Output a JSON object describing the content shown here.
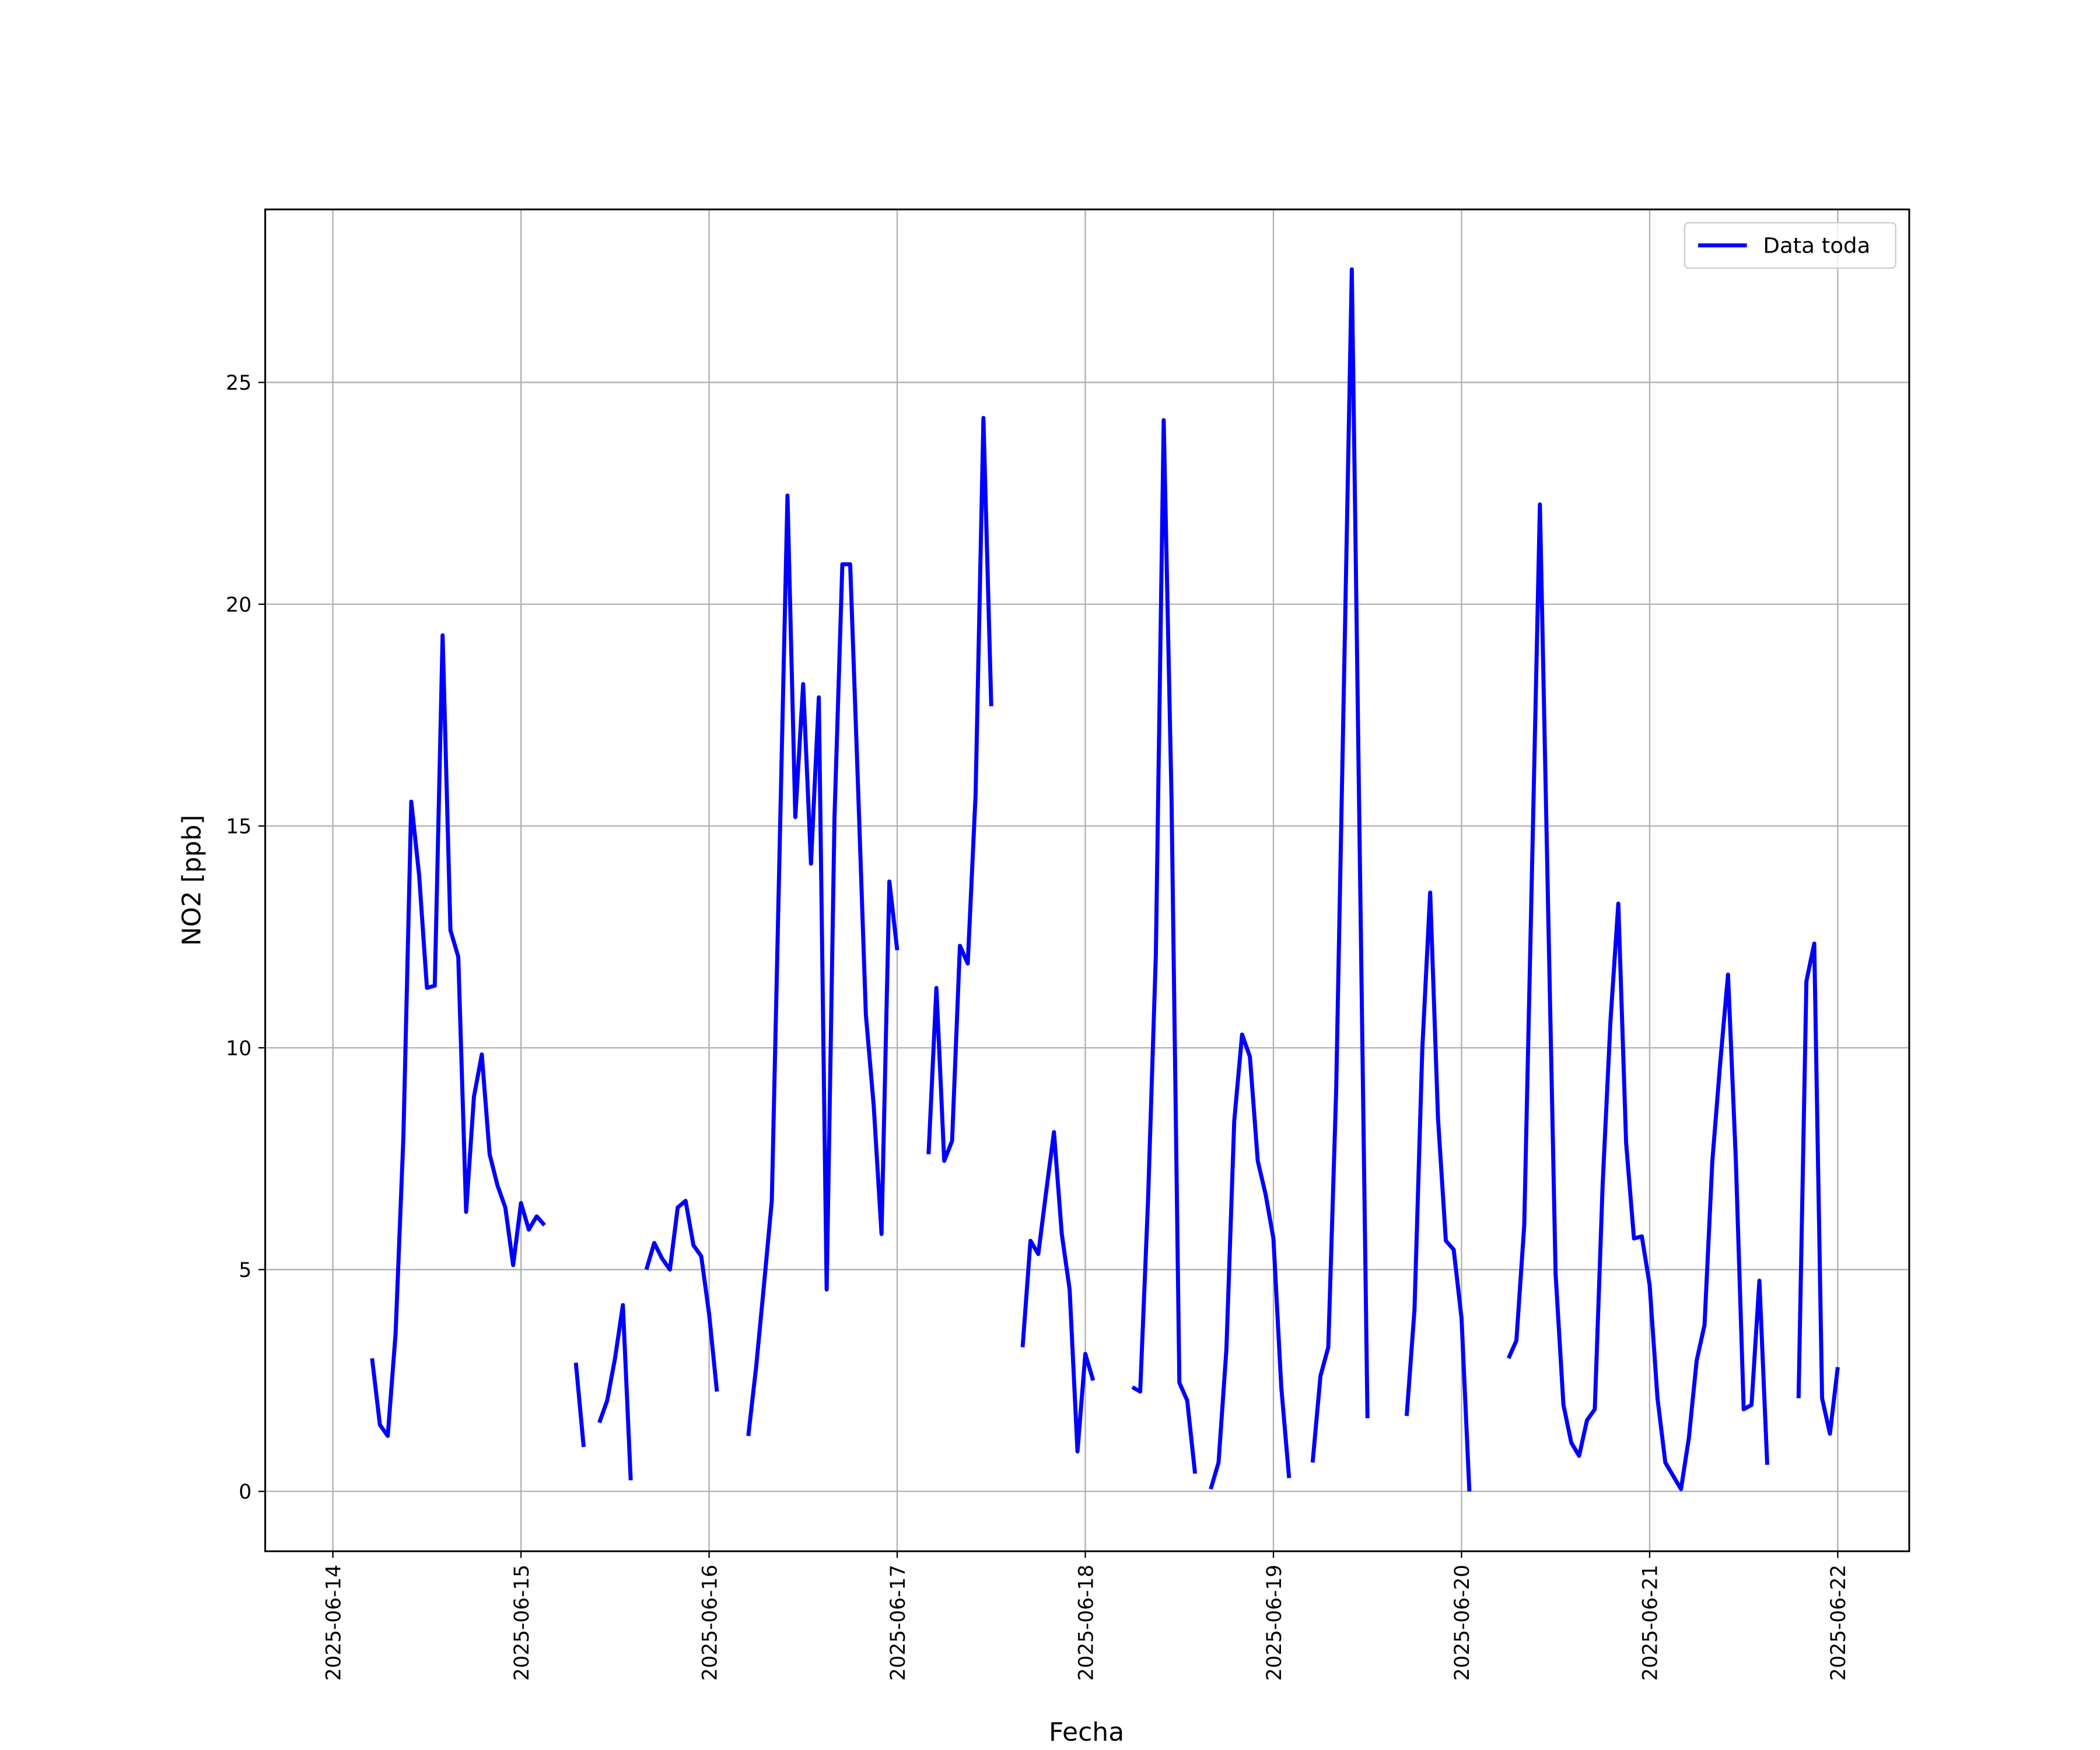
{
  "chart_data": {
    "type": "line",
    "xlabel": "Fecha",
    "ylabel": "NO2 [ppb]",
    "x": [
      "2025-06-14 05:00",
      "2025-06-14 06:00",
      "2025-06-14 07:00",
      "2025-06-14 08:00",
      "2025-06-14 09:00",
      "2025-06-14 10:00",
      "2025-06-14 11:00",
      "2025-06-14 12:00",
      "2025-06-14 13:00",
      "2025-06-14 14:00",
      "2025-06-14 15:00",
      "2025-06-14 16:00",
      "2025-06-14 17:00",
      "2025-06-14 18:00",
      "2025-06-14 19:00",
      "2025-06-14 20:00",
      "2025-06-14 21:00",
      "2025-06-14 22:00",
      "2025-06-14 23:00",
      "2025-06-15 00:00",
      "2025-06-15 01:00",
      "2025-06-15 02:00",
      "2025-06-15 03:00",
      "2025-06-15 04:00",
      "2025-06-15 07:00",
      "2025-06-15 08:00",
      "2025-06-15 09:00",
      "2025-06-15 10:00",
      "2025-06-15 11:00",
      "2025-06-15 12:00",
      "2025-06-15 13:00",
      "2025-06-15 14:00",
      "2025-06-15 15:00",
      "2025-06-15 16:00",
      "2025-06-15 17:00",
      "2025-06-15 18:00",
      "2025-06-15 19:00",
      "2025-06-15 20:00",
      "2025-06-15 21:00",
      "2025-06-15 22:00",
      "2025-06-15 23:00",
      "2025-06-16 00:00",
      "2025-06-16 01:00",
      "2025-06-16 02:00",
      "2025-06-16 05:00",
      "2025-06-16 06:00",
      "2025-06-16 07:00",
      "2025-06-16 08:00",
      "2025-06-16 09:00",
      "2025-06-16 10:00",
      "2025-06-16 11:00",
      "2025-06-16 12:00",
      "2025-06-16 13:00",
      "2025-06-16 14:00",
      "2025-06-16 15:00",
      "2025-06-16 16:00",
      "2025-06-16 17:00",
      "2025-06-16 18:00",
      "2025-06-16 19:00",
      "2025-06-16 20:00",
      "2025-06-16 21:00",
      "2025-06-16 22:00",
      "2025-06-16 23:00",
      "2025-06-17 00:00",
      "2025-06-17 01:00",
      "2025-06-17 04:00",
      "2025-06-17 05:00",
      "2025-06-17 06:00",
      "2025-06-17 07:00",
      "2025-06-17 08:00",
      "2025-06-17 09:00",
      "2025-06-17 10:00",
      "2025-06-17 11:00",
      "2025-06-17 12:00",
      "2025-06-17 13:00",
      "2025-06-17 16:00",
      "2025-06-17 17:00",
      "2025-06-17 18:00",
      "2025-06-17 19:00",
      "2025-06-17 20:00",
      "2025-06-17 21:00",
      "2025-06-17 22:00",
      "2025-06-17 23:00",
      "2025-06-18 00:00",
      "2025-06-18 01:00",
      "2025-06-18 02:00",
      "2025-06-18 06:00",
      "2025-06-18 07:00",
      "2025-06-18 08:00",
      "2025-06-18 09:00",
      "2025-06-18 10:00",
      "2025-06-18 11:00",
      "2025-06-18 12:00",
      "2025-06-18 13:00",
      "2025-06-18 14:00",
      "2025-06-18 15:00",
      "2025-06-18 16:00",
      "2025-06-18 17:00",
      "2025-06-18 18:00",
      "2025-06-18 19:00",
      "2025-06-18 20:00",
      "2025-06-18 21:00",
      "2025-06-18 22:00",
      "2025-06-18 23:00",
      "2025-06-19 00:00",
      "2025-06-19 01:00",
      "2025-06-19 02:00",
      "2025-06-19 03:00",
      "2025-06-19 05:00",
      "2025-06-19 06:00",
      "2025-06-19 07:00",
      "2025-06-19 08:00",
      "2025-06-19 09:00",
      "2025-06-19 10:00",
      "2025-06-19 11:00",
      "2025-06-19 12:00",
      "2025-06-19 13:00",
      "2025-06-19 17:00",
      "2025-06-19 18:00",
      "2025-06-19 19:00",
      "2025-06-19 20:00",
      "2025-06-19 21:00",
      "2025-06-19 22:00",
      "2025-06-19 23:00",
      "2025-06-20 00:00",
      "2025-06-20 01:00",
      "2025-06-20 02:00",
      "2025-06-20 06:00",
      "2025-06-20 07:00",
      "2025-06-20 08:00",
      "2025-06-20 09:00",
      "2025-06-20 10:00",
      "2025-06-20 11:00",
      "2025-06-20 12:00",
      "2025-06-20 13:00",
      "2025-06-20 14:00",
      "2025-06-20 15:00",
      "2025-06-20 16:00",
      "2025-06-20 17:00",
      "2025-06-20 18:00",
      "2025-06-20 19:00",
      "2025-06-20 20:00",
      "2025-06-20 21:00",
      "2025-06-20 22:00",
      "2025-06-20 23:00",
      "2025-06-21 00:00",
      "2025-06-21 01:00",
      "2025-06-21 02:00",
      "2025-06-21 03:00",
      "2025-06-21 04:00",
      "2025-06-21 05:00",
      "2025-06-21 06:00",
      "2025-06-21 07:00",
      "2025-06-21 08:00",
      "2025-06-21 09:00",
      "2025-06-21 10:00",
      "2025-06-21 11:00",
      "2025-06-21 12:00",
      "2025-06-21 13:00",
      "2025-06-21 14:00",
      "2025-06-21 15:00",
      "2025-06-21 16:00",
      "2025-06-21 19:00",
      "2025-06-21 20:00",
      "2025-06-21 21:00",
      "2025-06-21 22:00",
      "2025-06-21 23:00",
      "2025-06-22 00:00"
    ],
    "series": [
      {
        "name": "Data toda",
        "color": "#0000ff",
        "values": [
          3.0,
          1.5,
          1.25,
          3.55,
          8.0,
          15.55,
          13.9,
          11.35,
          11.4,
          19.3,
          12.65,
          12.05,
          6.3,
          8.9,
          9.85,
          7.6,
          6.9,
          6.4,
          5.1,
          6.5,
          5.9,
          6.2,
          6.0,
          null,
          2.9,
          1.0,
          null,
          1.55,
          2.05,
          3.0,
          4.2,
          0.25,
          null,
          5.0,
          5.6,
          5.25,
          5.0,
          6.4,
          6.55,
          5.55,
          5.3,
          4.0,
          2.25,
          null,
          1.25,
          2.8,
          4.65,
          6.55,
          14.5,
          22.45,
          15.2,
          18.2,
          14.15,
          17.9,
          4.55,
          15.2,
          20.9,
          20.9,
          15.9,
          10.75,
          8.7,
          5.8,
          13.75,
          12.2,
          null,
          7.6,
          11.35,
          7.45,
          7.9,
          12.3,
          11.9,
          15.7,
          24.2,
          17.7,
          null,
          3.25,
          5.65,
          5.35,
          6.75,
          8.1,
          5.8,
          4.55,
          0.9,
          3.1,
          2.5,
          null,
          2.35,
          2.25,
          6.55,
          12.1,
          24.15,
          15.6,
          2.45,
          2.05,
          0.4,
          null,
          0.05,
          0.65,
          3.2,
          8.35,
          10.3,
          9.8,
          7.45,
          6.7,
          5.7,
          2.35,
          0.3,
          null,
          0.65,
          2.6,
          3.25,
          9.0,
          18.25,
          27.55,
          14.6,
          1.65,
          null,
          1.7,
          4.1,
          10.0,
          13.5,
          8.4,
          5.65,
          5.45,
          3.9,
          0.0,
          null,
          3.0,
          3.4,
          6.0,
          14.1,
          22.25,
          13.55,
          4.9,
          1.95,
          1.1,
          0.8,
          1.6,
          1.85,
          6.9,
          10.6,
          13.25,
          7.85,
          5.7,
          5.75,
          4.65,
          2.1,
          0.65,
          0.35,
          0.05,
          1.2,
          2.95,
          3.75,
          7.45,
          9.65,
          11.65,
          7.45,
          1.85,
          1.95,
          4.75,
          0.6,
          null,
          2.1,
          11.5,
          12.35,
          2.1,
          1.3,
          2.8
        ]
      }
    ],
    "xlim": [
      "2025-06-13 15:22",
      "2025-06-22 09:07"
    ],
    "xticks": [
      "2025-06-14",
      "2025-06-15",
      "2025-06-16",
      "2025-06-17",
      "2025-06-18",
      "2025-06-19",
      "2025-06-20",
      "2025-06-21",
      "2025-06-22"
    ],
    "ylim": [
      -1.35,
      28.9
    ],
    "yticks": [
      0,
      5,
      10,
      15,
      20,
      25
    ],
    "grid": true,
    "legend": "upper right"
  }
}
